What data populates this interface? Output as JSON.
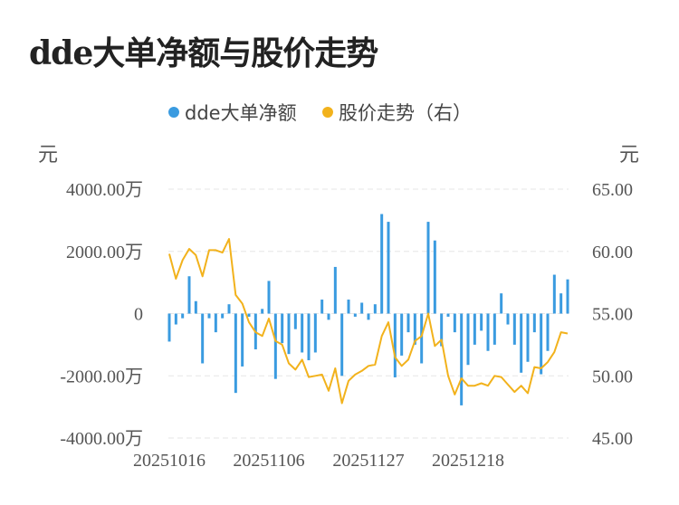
{
  "title": "dde大单净额与股价走势",
  "legend": [
    {
      "label": "dde大单净额",
      "color": "#3a9be0"
    },
    {
      "label": "股价走势（右）",
      "color": "#f2b21c"
    }
  ],
  "y_left_unit": "元",
  "y_right_unit": "元",
  "chart_data": {
    "type": "bar+line",
    "x_tick_labels": [
      "20251016",
      "20251106",
      "20251127",
      "20251218"
    ],
    "y_left_ticks": [
      "4000.00万",
      "2000.00万",
      "0",
      "-2000.00万",
      "-4000.00万"
    ],
    "y_right_ticks": [
      "65.00",
      "60.00",
      "55.00",
      "50.00",
      "45.00"
    ],
    "ylim_left": [
      -4000,
      4000
    ],
    "ylim_right": [
      45,
      65
    ],
    "grid": true,
    "series": [
      {
        "name": "dde大单净额",
        "type": "bar",
        "axis": "left",
        "values": [
          -900,
          -350,
          -150,
          1200,
          400,
          -1600,
          -150,
          -600,
          -150,
          300,
          -2550,
          -1700,
          -100,
          -1150,
          150,
          1050,
          -2100,
          -950,
          -1300,
          -500,
          -1250,
          -1500,
          -1250,
          450,
          -200,
          1500,
          -2000,
          450,
          -100,
          350,
          -200,
          300,
          3200,
          2950,
          -2050,
          -1350,
          -600,
          -1000,
          -1600,
          2950,
          2350,
          -1050,
          -100,
          -600,
          -2950,
          -1650,
          -1000,
          -550,
          -1200,
          -1000,
          650,
          -350,
          -1000,
          -1900,
          -1550,
          -600,
          -1950,
          -1200,
          1250,
          650,
          1100
        ]
      },
      {
        "name": "股价走势（右）",
        "type": "line",
        "axis": "right",
        "values": [
          59.8,
          57.8,
          59.3,
          60.2,
          59.7,
          58.0,
          60.1,
          60.1,
          59.9,
          61.0,
          56.5,
          55.8,
          54.3,
          53.5,
          53.2,
          54.6,
          52.8,
          52.5,
          51.0,
          50.5,
          51.3,
          49.9,
          50.0,
          50.1,
          48.8,
          50.6,
          47.8,
          49.6,
          50.1,
          50.4,
          50.8,
          50.9,
          53.2,
          54.3,
          51.5,
          50.8,
          51.3,
          52.8,
          53.2,
          55.0,
          52.4,
          52.9,
          50.0,
          48.5,
          49.8,
          49.2,
          49.2,
          49.4,
          49.2,
          50.0,
          49.9,
          49.3,
          48.7,
          49.2,
          48.6,
          50.7,
          50.6,
          51.1,
          51.9,
          53.5,
          53.4
        ]
      }
    ]
  }
}
